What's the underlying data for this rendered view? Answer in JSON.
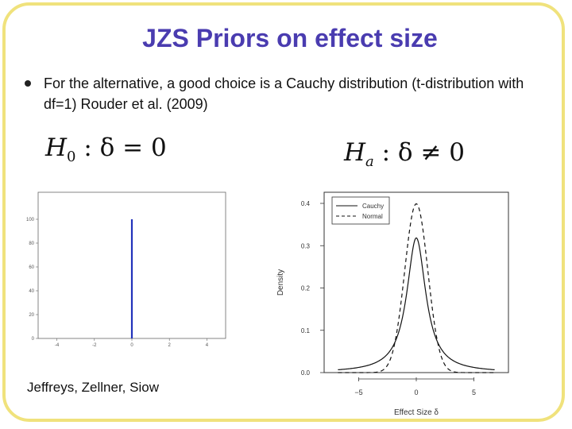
{
  "slide": {
    "title": "JZS Priors on effect size",
    "bullet": "For the alternative, a good choice is a Cauchy distribution (t-distribution with df=1)  Rouder et al. (2009)",
    "h0_symbol": "H",
    "h0_sub": "0",
    "h0_rest": " : δ = 0",
    "ha_symbol": "H",
    "ha_sub": "a",
    "ha_rest": " : δ ≠ 0",
    "attribution": "Jeffreys, Zellner, Siow"
  },
  "chart_data": [
    {
      "type": "line",
      "series": [
        {
          "values": [
            0,
            100
          ]
        }
      ],
      "x": [
        0,
        0
      ],
      "xticks": [
        "-4",
        "-2",
        "0",
        "2",
        "4"
      ],
      "yticks": [
        "0",
        "20",
        "40",
        "60",
        "80",
        "100"
      ],
      "xlim": [
        -5,
        5
      ],
      "ylim": [
        0,
        100
      ],
      "line_color": "#2233bb"
    },
    {
      "type": "line",
      "xlabel": "Effect Size δ",
      "ylabel": "Density",
      "xlim": [
        -8,
        8
      ],
      "ylim": [
        0,
        0.4
      ],
      "xticks": [
        "−5",
        "0",
        "5"
      ],
      "yticks": [
        "0.0",
        "0.1",
        "0.2",
        "0.3",
        "0.4"
      ],
      "series": [
        {
          "name": "Cauchy",
          "style": "solid",
          "distribution": "cauchy"
        },
        {
          "name": "Normal",
          "style": "dashed",
          "distribution": "normal"
        }
      ],
      "legend_position": "top-left"
    }
  ]
}
